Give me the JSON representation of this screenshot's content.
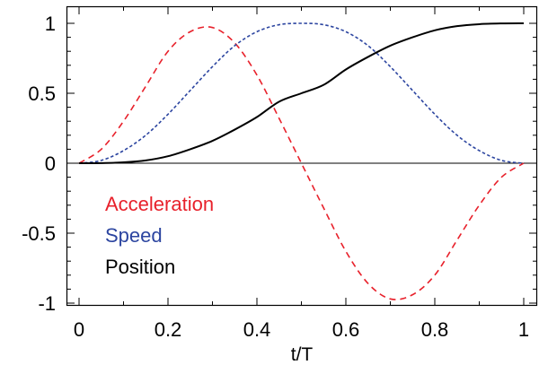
{
  "chart_data": {
    "type": "line",
    "title": "",
    "xlabel": "t/T",
    "ylabel": "",
    "xlim": [
      0,
      1
    ],
    "ylim": [
      -1,
      1
    ],
    "grid": false,
    "x_ticks": [
      0,
      0.2,
      0.4,
      0.6,
      0.8,
      1
    ],
    "x_tick_labels": [
      "0",
      "0.2",
      "0.4",
      "0.6",
      "0.8",
      "1"
    ],
    "y_ticks": [
      1,
      0.5,
      0,
      -0.5,
      -1
    ],
    "y_tick_labels": [
      "1",
      "0.5",
      "0",
      "-0.5",
      "-1"
    ],
    "legend_placement": "lower-left",
    "x": [
      0,
      0.05,
      0.1,
      0.15,
      0.2,
      0.25,
      0.3,
      0.35,
      0.4,
      0.45,
      0.5,
      0.55,
      0.6,
      0.65,
      0.7,
      0.75,
      0.8,
      0.85,
      0.9,
      0.95,
      1
    ],
    "series": [
      {
        "name": "Acceleration",
        "color": "#e8212b",
        "dash": "long",
        "values": [
          0,
          0.1,
          0.3,
          0.55,
          0.8,
          0.94,
          0.97,
          0.86,
          0.63,
          0.32,
          0,
          -0.32,
          -0.63,
          -0.86,
          -0.97,
          -0.94,
          -0.8,
          -0.55,
          -0.3,
          -0.1,
          0
        ]
      },
      {
        "name": "Speed",
        "color": "#2c45a0",
        "dash": "short",
        "values": [
          0,
          0.02,
          0.09,
          0.2,
          0.35,
          0.52,
          0.69,
          0.84,
          0.94,
          0.99,
          1,
          0.99,
          0.94,
          0.84,
          0.69,
          0.52,
          0.35,
          0.2,
          0.09,
          0.02,
          0
        ]
      },
      {
        "name": "Position",
        "color": "#000000",
        "dash": "solid",
        "values": [
          0,
          0.001,
          0.006,
          0.02,
          0.05,
          0.1,
          0.16,
          0.24,
          0.33,
          0.44,
          0.5,
          0.56,
          0.67,
          0.76,
          0.84,
          0.9,
          0.95,
          0.98,
          0.994,
          0.999,
          1
        ]
      }
    ]
  }
}
